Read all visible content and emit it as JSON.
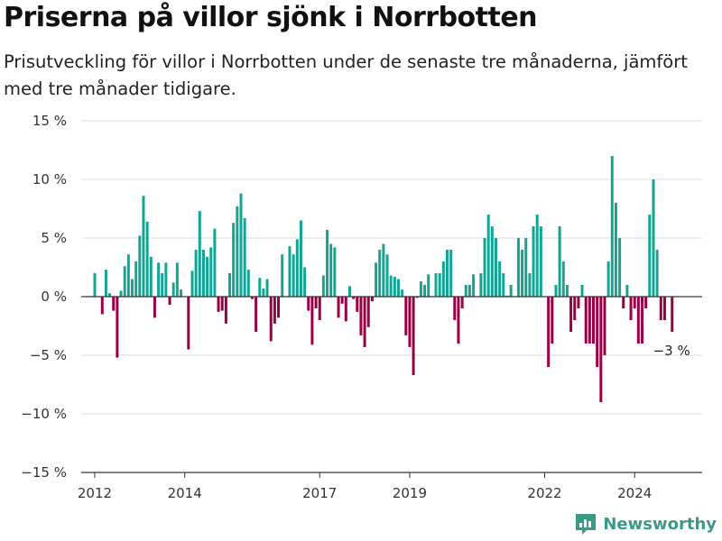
{
  "title": "Priserna på villor sjönk i Norrbotten",
  "subtitle": "Prisutveckling för villor i Norrbotten under de senaste tre månaderna, jämfört med tre månader tidigare.",
  "brand": "Newsworthy",
  "colors": {
    "positive": "#13a594",
    "negative": "#980046",
    "grid": "#dddddd",
    "baseline": "#333333",
    "brand": "#3a9a8a"
  },
  "chart_data": {
    "type": "bar",
    "xlabel": "",
    "ylabel": "",
    "ylim": [
      -15,
      15
    ],
    "yticks": [
      15,
      10,
      5,
      0,
      -5,
      -10,
      -15
    ],
    "ytick_labels": [
      "15 %",
      "10 %",
      "5 %",
      "0 %",
      "−5 %",
      "−10 %",
      "−15 %"
    ],
    "xticks": [
      2012,
      2014,
      2017,
      2019,
      2022,
      2024
    ],
    "xlim": [
      2011.7,
      2025.5
    ],
    "grid": true,
    "annotation": {
      "text": "−3 %",
      "x": 2024.83,
      "y": -3
    },
    "x": [
      2012.0,
      2012.083,
      2012.167,
      2012.25,
      2012.333,
      2012.417,
      2012.5,
      2012.583,
      2012.667,
      2012.75,
      2012.833,
      2012.917,
      2013.0,
      2013.083,
      2013.167,
      2013.25,
      2013.333,
      2013.417,
      2013.5,
      2013.583,
      2013.667,
      2013.75,
      2013.833,
      2013.917,
      2014.0,
      2014.083,
      2014.167,
      2014.25,
      2014.333,
      2014.417,
      2014.5,
      2014.583,
      2014.667,
      2014.75,
      2014.833,
      2014.917,
      2015.0,
      2015.083,
      2015.167,
      2015.25,
      2015.333,
      2015.417,
      2015.5,
      2015.583,
      2015.667,
      2015.75,
      2015.833,
      2015.917,
      2016.0,
      2016.083,
      2016.167,
      2016.25,
      2016.333,
      2016.417,
      2016.5,
      2016.583,
      2016.667,
      2016.75,
      2016.833,
      2016.917,
      2017.0,
      2017.083,
      2017.167,
      2017.25,
      2017.333,
      2017.417,
      2017.5,
      2017.583,
      2017.667,
      2017.75,
      2017.833,
      2017.917,
      2018.0,
      2018.083,
      2018.167,
      2018.25,
      2018.333,
      2018.417,
      2018.5,
      2018.583,
      2018.667,
      2018.75,
      2018.833,
      2018.917,
      2019.0,
      2019.083,
      2019.167,
      2019.25,
      2019.333,
      2019.417,
      2019.5,
      2019.583,
      2019.667,
      2019.75,
      2019.833,
      2019.917,
      2020.0,
      2020.083,
      2020.167,
      2020.25,
      2020.333,
      2020.417,
      2020.5,
      2020.583,
      2020.667,
      2020.75,
      2020.833,
      2020.917,
      2021.0,
      2021.083,
      2021.167,
      2021.25,
      2021.333,
      2021.417,
      2021.5,
      2021.583,
      2021.667,
      2021.75,
      2021.833,
      2021.917,
      2022.0,
      2022.083,
      2022.167,
      2022.25,
      2022.333,
      2022.417,
      2022.5,
      2022.583,
      2022.667,
      2022.75,
      2022.833,
      2022.917,
      2023.0,
      2023.083,
      2023.167,
      2023.25,
      2023.333,
      2023.417,
      2023.5,
      2023.583,
      2023.667,
      2023.75,
      2023.833,
      2023.917,
      2024.0,
      2024.083,
      2024.167,
      2024.25,
      2024.333,
      2024.417,
      2024.5,
      2024.583,
      2024.667,
      2024.75,
      2024.833
    ],
    "values": [
      2.0,
      0,
      -1.5,
      2.3,
      0.3,
      -1.2,
      -5.2,
      0.5,
      2.6,
      3.6,
      1.5,
      3.0,
      5.2,
      8.6,
      6.4,
      3.4,
      -1.8,
      2.9,
      2.0,
      2.9,
      -0.7,
      1.2,
      2.9,
      0.6,
      0,
      -4.5,
      2.2,
      4.0,
      7.3,
      4.0,
      3.4,
      4.2,
      5.8,
      -1.3,
      -1.2,
      -2.3,
      2.0,
      6.3,
      7.7,
      8.8,
      6.7,
      2.3,
      -0.2,
      -3.0,
      1.6,
      0.7,
      1.5,
      -3.8,
      -2.3,
      -1.8,
      3.6,
      0,
      4.3,
      3.6,
      4.9,
      6.5,
      2.5,
      -1.2,
      -4.1,
      -1.0,
      -2.0,
      1.8,
      5.7,
      4.5,
      4.2,
      -1.8,
      -0.6,
      -2.1,
      0.9,
      -0.2,
      -1.3,
      -3.3,
      -4.3,
      -2.6,
      -0.4,
      2.9,
      4.0,
      4.5,
      3.6,
      1.8,
      1.7,
      1.5,
      0.6,
      -3.3,
      -4.3,
      -6.7,
      -0.1,
      1.3,
      1.0,
      1.9,
      0,
      2.0,
      2.0,
      3.0,
      4.0,
      4.0,
      -2.0,
      -4.0,
      -1.0,
      1.0,
      1.0,
      1.9,
      0,
      2.0,
      5.0,
      7.0,
      6.0,
      5.0,
      3.0,
      2.0,
      0.1,
      1.0,
      0,
      5.0,
      4.0,
      5.0,
      2.0,
      6.0,
      7.0,
      6.0,
      0,
      -6.0,
      -4.0,
      1.0,
      6.0,
      3.0,
      1.0,
      -3.0,
      -2.0,
      -1.0,
      1.0,
      -4.0,
      -4.0,
      -4.0,
      -6.0,
      -9.0,
      -5.0,
      3.0,
      12.0,
      8.0,
      5.0,
      -1.0,
      1.0,
      -2.0,
      -1.0,
      -4.0,
      -4.0,
      -1.0,
      7.0,
      10.0,
      4.0,
      -2.0,
      -2.0,
      0,
      -3.0
    ]
  }
}
